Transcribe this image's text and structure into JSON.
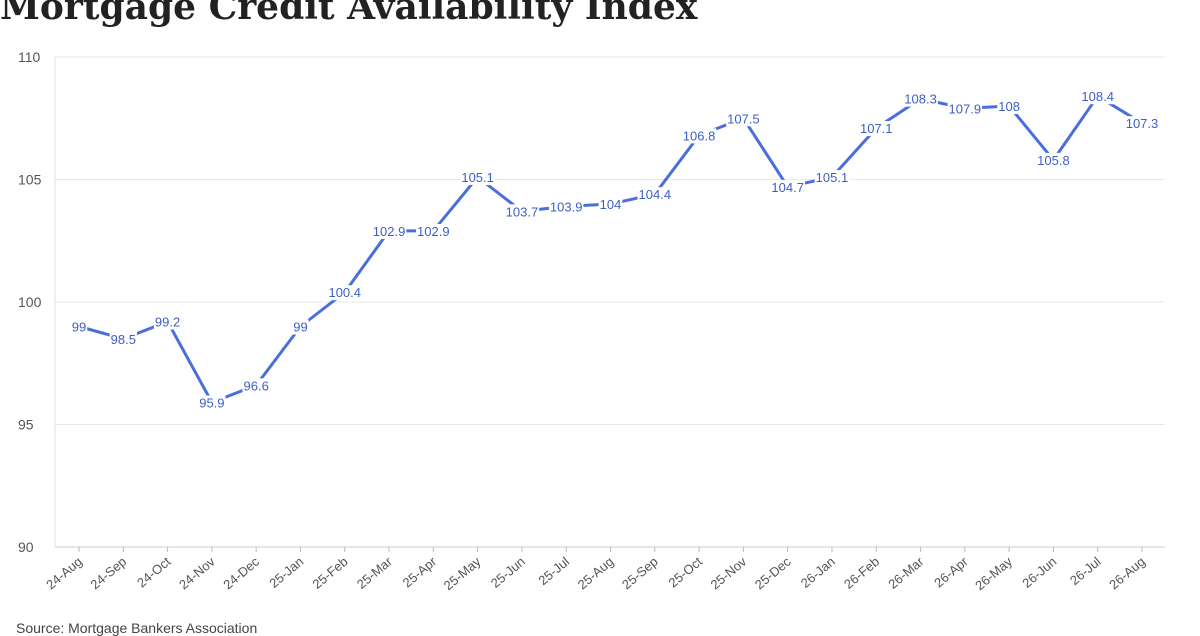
{
  "title": "Mortgage Credit Availability Index",
  "source": "Source: Mortgage Bankers Association",
  "chart_data": {
    "type": "line",
    "title": "Mortgage Credit Availability Index",
    "xlabel": "",
    "ylabel": "",
    "ylim": [
      90,
      110
    ],
    "yticks": [
      90,
      95,
      100,
      105,
      110
    ],
    "grid": true,
    "line_color": "#4a6fdc",
    "categories": [
      "24-Aug",
      "24-Sep",
      "24-Oct",
      "24-Nov",
      "24-Dec",
      "25-Jan",
      "25-Feb",
      "25-Mar",
      "25-Apr",
      "25-May",
      "25-Jun",
      "25-Jul",
      "25-Aug",
      "25-Sep",
      "25-Oct",
      "25-Nov",
      "25-Dec",
      "26-Jan",
      "26-Feb",
      "26-Mar",
      "26-Apr",
      "26-May",
      "26-Jun",
      "26-Jul",
      "26-Aug"
    ],
    "series": [
      {
        "values": [
          99,
          98.5,
          99.2,
          95.9,
          96.6,
          99,
          100.4,
          102.9,
          102.9,
          105.1,
          103.7,
          103.9,
          104,
          104.4,
          106.8,
          107.5,
          104.7,
          105.1,
          107.1,
          108.3,
          107.9,
          108,
          105.8,
          108.4,
          107.3
        ]
      }
    ]
  }
}
